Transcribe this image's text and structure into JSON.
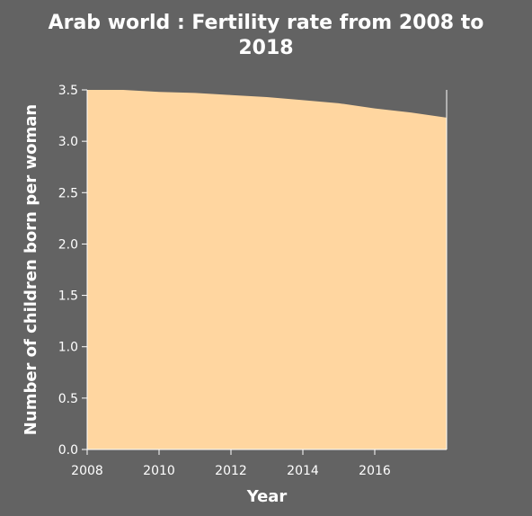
{
  "chart_data": {
    "type": "area",
    "title_line1": "Arab world : Fertility rate from 2008 to",
    "title_line2": "2018",
    "xlabel": "Year",
    "ylabel": "Number of children born per woman",
    "x": [
      2008,
      2009,
      2010,
      2011,
      2012,
      2013,
      2014,
      2015,
      2016,
      2017,
      2018
    ],
    "y": [
      3.5,
      3.5,
      3.48,
      3.47,
      3.45,
      3.43,
      3.4,
      3.37,
      3.32,
      3.28,
      3.23
    ],
    "xlim": [
      2008,
      2018
    ],
    "ylim": [
      0,
      3.5
    ],
    "xticks": [
      "2008",
      "2010",
      "2012",
      "2014",
      "2016"
    ],
    "yticks": [
      "0.0",
      "0.5",
      "1.0",
      "1.5",
      "2.0",
      "2.5",
      "3.0",
      "3.5"
    ],
    "fill_color": "#FFD6A0",
    "background_color": "#636363",
    "grid": false
  }
}
